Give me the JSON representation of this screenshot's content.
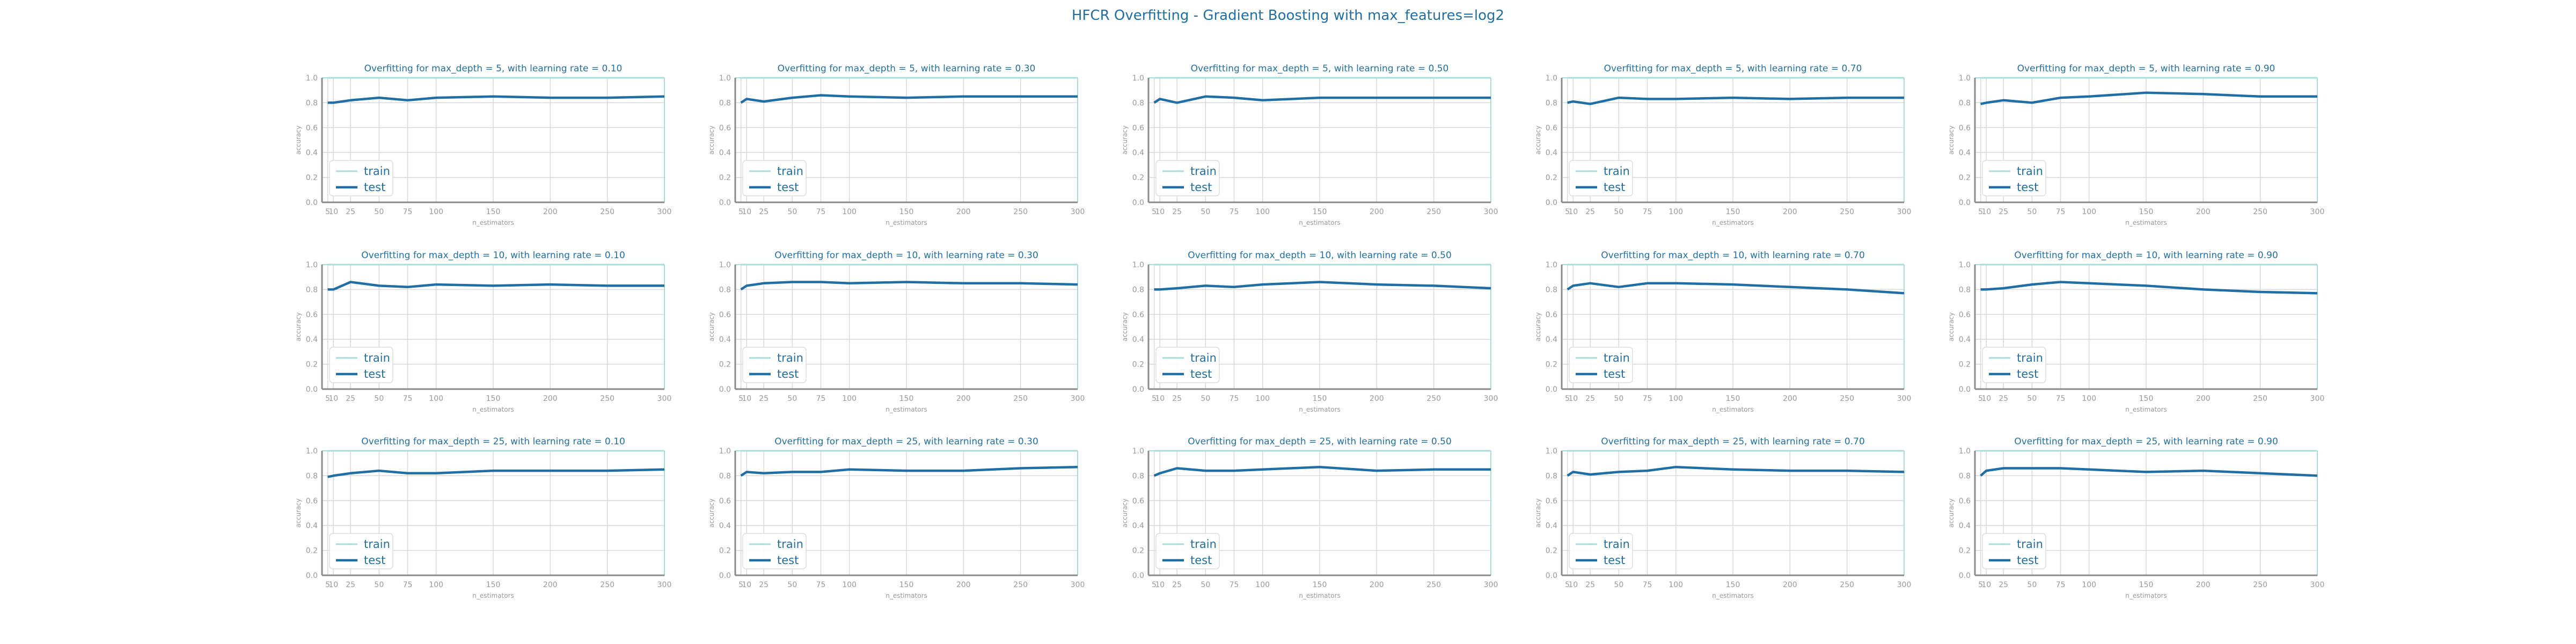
{
  "suptitle": "HFCR Overfitting - Gradient Boosting with max_features=log2",
  "colors": {
    "train": "#a8ddd9",
    "test": "#1f6fa5",
    "title": "#1f6fa5",
    "axis_text": "#999999",
    "grid": "#d8d8d8"
  },
  "chart_data": [
    {
      "type": "line",
      "title": "Overfitting for max_depth = 5, with learning rate = 0.10",
      "xlabel": "n_estimators",
      "ylabel": "accuracy",
      "x": [
        5,
        10,
        25,
        50,
        75,
        100,
        150,
        200,
        250,
        300
      ],
      "xticks": [
        "5",
        "10",
        "25",
        "50",
        "75",
        "100",
        "150",
        "200",
        "250",
        "300"
      ],
      "ylim": [
        0,
        1
      ],
      "yticks": [
        "0.0",
        "0.2",
        "0.4",
        "0.6",
        "0.8",
        "1.0"
      ],
      "legend": "lower-left",
      "grid": true,
      "series": [
        {
          "name": "train",
          "values": [
            1,
            1,
            1,
            1,
            1,
            1,
            1,
            1,
            1,
            1
          ]
        },
        {
          "name": "test",
          "values": [
            0.8,
            0.8,
            0.82,
            0.84,
            0.82,
            0.84,
            0.85,
            0.84,
            0.84,
            0.85
          ]
        }
      ]
    },
    {
      "type": "line",
      "title": "Overfitting for max_depth = 5, with learning rate = 0.30",
      "xlabel": "n_estimators",
      "ylabel": "accuracy",
      "x": [
        5,
        10,
        25,
        50,
        75,
        100,
        150,
        200,
        250,
        300
      ],
      "xticks": [
        "5",
        "10",
        "25",
        "50",
        "75",
        "100",
        "150",
        "200",
        "250",
        "300"
      ],
      "ylim": [
        0,
        1
      ],
      "yticks": [
        "0.0",
        "0.2",
        "0.4",
        "0.6",
        "0.8",
        "1.0"
      ],
      "legend": "lower-left",
      "grid": true,
      "series": [
        {
          "name": "train",
          "values": [
            1,
            1,
            1,
            1,
            1,
            1,
            1,
            1,
            1,
            1
          ]
        },
        {
          "name": "test",
          "values": [
            0.8,
            0.83,
            0.81,
            0.84,
            0.86,
            0.85,
            0.84,
            0.85,
            0.85,
            0.85
          ]
        }
      ]
    },
    {
      "type": "line",
      "title": "Overfitting for max_depth = 5, with learning rate = 0.50",
      "xlabel": "n_estimators",
      "ylabel": "accuracy",
      "x": [
        5,
        10,
        25,
        50,
        75,
        100,
        150,
        200,
        250,
        300
      ],
      "xticks": [
        "5",
        "10",
        "25",
        "50",
        "75",
        "100",
        "150",
        "200",
        "250",
        "300"
      ],
      "ylim": [
        0,
        1
      ],
      "yticks": [
        "0.0",
        "0.2",
        "0.4",
        "0.6",
        "0.8",
        "1.0"
      ],
      "legend": "lower-left",
      "grid": true,
      "series": [
        {
          "name": "train",
          "values": [
            1,
            1,
            1,
            1,
            1,
            1,
            1,
            1,
            1,
            1
          ]
        },
        {
          "name": "test",
          "values": [
            0.8,
            0.83,
            0.8,
            0.85,
            0.84,
            0.82,
            0.84,
            0.84,
            0.84,
            0.84
          ]
        }
      ]
    },
    {
      "type": "line",
      "title": "Overfitting for max_depth = 5, with learning rate = 0.70",
      "xlabel": "n_estimators",
      "ylabel": "accuracy",
      "x": [
        5,
        10,
        25,
        50,
        75,
        100,
        150,
        200,
        250,
        300
      ],
      "xticks": [
        "5",
        "10",
        "25",
        "50",
        "75",
        "100",
        "150",
        "200",
        "250",
        "300"
      ],
      "ylim": [
        0,
        1
      ],
      "yticks": [
        "0.0",
        "0.2",
        "0.4",
        "0.6",
        "0.8",
        "1.0"
      ],
      "legend": "lower-left",
      "grid": true,
      "series": [
        {
          "name": "train",
          "values": [
            1,
            1,
            1,
            1,
            1,
            1,
            1,
            1,
            1,
            1
          ]
        },
        {
          "name": "test",
          "values": [
            0.8,
            0.81,
            0.79,
            0.84,
            0.83,
            0.83,
            0.84,
            0.83,
            0.84,
            0.84
          ]
        }
      ]
    },
    {
      "type": "line",
      "title": "Overfitting for max_depth = 5, with learning rate = 0.90",
      "xlabel": "n_estimators",
      "ylabel": "accuracy",
      "x": [
        5,
        10,
        25,
        50,
        75,
        100,
        150,
        200,
        250,
        300
      ],
      "xticks": [
        "5",
        "10",
        "25",
        "50",
        "75",
        "100",
        "150",
        "200",
        "250",
        "300"
      ],
      "ylim": [
        0,
        1
      ],
      "yticks": [
        "0.0",
        "0.2",
        "0.4",
        "0.6",
        "0.8",
        "1.0"
      ],
      "legend": "lower-left",
      "grid": true,
      "series": [
        {
          "name": "train",
          "values": [
            1,
            1,
            1,
            1,
            1,
            1,
            1,
            1,
            1,
            1
          ]
        },
        {
          "name": "test",
          "values": [
            0.79,
            0.8,
            0.82,
            0.8,
            0.84,
            0.85,
            0.88,
            0.87,
            0.85,
            0.85
          ]
        }
      ]
    },
    {
      "type": "line",
      "title": "Overfitting for max_depth = 10, with learning rate = 0.10",
      "xlabel": "n_estimators",
      "ylabel": "accuracy",
      "x": [
        5,
        10,
        25,
        50,
        75,
        100,
        150,
        200,
        250,
        300
      ],
      "xticks": [
        "5",
        "10",
        "25",
        "50",
        "75",
        "100",
        "150",
        "200",
        "250",
        "300"
      ],
      "ylim": [
        0,
        1
      ],
      "yticks": [
        "0.0",
        "0.2",
        "0.4",
        "0.6",
        "0.8",
        "1.0"
      ],
      "legend": "lower-left",
      "grid": true,
      "series": [
        {
          "name": "train",
          "values": [
            1,
            1,
            1,
            1,
            1,
            1,
            1,
            1,
            1,
            1
          ]
        },
        {
          "name": "test",
          "values": [
            0.8,
            0.8,
            0.86,
            0.83,
            0.82,
            0.84,
            0.83,
            0.84,
            0.83,
            0.83
          ]
        }
      ]
    },
    {
      "type": "line",
      "title": "Overfitting for max_depth = 10, with learning rate = 0.30",
      "xlabel": "n_estimators",
      "ylabel": "accuracy",
      "x": [
        5,
        10,
        25,
        50,
        75,
        100,
        150,
        200,
        250,
        300
      ],
      "xticks": [
        "5",
        "10",
        "25",
        "50",
        "75",
        "100",
        "150",
        "200",
        "250",
        "300"
      ],
      "ylim": [
        0,
        1
      ],
      "yticks": [
        "0.0",
        "0.2",
        "0.4",
        "0.6",
        "0.8",
        "1.0"
      ],
      "legend": "lower-left",
      "grid": true,
      "series": [
        {
          "name": "train",
          "values": [
            1,
            1,
            1,
            1,
            1,
            1,
            1,
            1,
            1,
            1
          ]
        },
        {
          "name": "test",
          "values": [
            0.8,
            0.83,
            0.85,
            0.86,
            0.86,
            0.85,
            0.86,
            0.85,
            0.85,
            0.84
          ]
        }
      ]
    },
    {
      "type": "line",
      "title": "Overfitting for max_depth = 10, with learning rate = 0.50",
      "xlabel": "n_estimators",
      "ylabel": "accuracy",
      "x": [
        5,
        10,
        25,
        50,
        75,
        100,
        150,
        200,
        250,
        300
      ],
      "xticks": [
        "5",
        "10",
        "25",
        "50",
        "75",
        "100",
        "150",
        "200",
        "250",
        "300"
      ],
      "ylim": [
        0,
        1
      ],
      "yticks": [
        "0.0",
        "0.2",
        "0.4",
        "0.6",
        "0.8",
        "1.0"
      ],
      "legend": "lower-left",
      "grid": true,
      "series": [
        {
          "name": "train",
          "values": [
            1,
            1,
            1,
            1,
            1,
            1,
            1,
            1,
            1,
            1
          ]
        },
        {
          "name": "test",
          "values": [
            0.8,
            0.8,
            0.81,
            0.83,
            0.82,
            0.84,
            0.86,
            0.84,
            0.83,
            0.81
          ]
        }
      ]
    },
    {
      "type": "line",
      "title": "Overfitting for max_depth = 10, with learning rate = 0.70",
      "xlabel": "n_estimators",
      "ylabel": "accuracy",
      "x": [
        5,
        10,
        25,
        50,
        75,
        100,
        150,
        200,
        250,
        300
      ],
      "xticks": [
        "5",
        "10",
        "25",
        "50",
        "75",
        "100",
        "150",
        "200",
        "250",
        "300"
      ],
      "ylim": [
        0,
        1
      ],
      "yticks": [
        "0.0",
        "0.2",
        "0.4",
        "0.6",
        "0.8",
        "1.0"
      ],
      "legend": "lower-left",
      "grid": true,
      "series": [
        {
          "name": "train",
          "values": [
            1,
            1,
            1,
            1,
            1,
            1,
            1,
            1,
            1,
            1
          ]
        },
        {
          "name": "test",
          "values": [
            0.8,
            0.83,
            0.85,
            0.82,
            0.85,
            0.85,
            0.84,
            0.82,
            0.8,
            0.77
          ]
        }
      ]
    },
    {
      "type": "line",
      "title": "Overfitting for max_depth = 10, with learning rate = 0.90",
      "xlabel": "n_estimators",
      "ylabel": "accuracy",
      "x": [
        5,
        10,
        25,
        50,
        75,
        100,
        150,
        200,
        250,
        300
      ],
      "xticks": [
        "5",
        "10",
        "25",
        "50",
        "75",
        "100",
        "150",
        "200",
        "250",
        "300"
      ],
      "ylim": [
        0,
        1
      ],
      "yticks": [
        "0.0",
        "0.2",
        "0.4",
        "0.6",
        "0.8",
        "1.0"
      ],
      "legend": "lower-left",
      "grid": true,
      "series": [
        {
          "name": "train",
          "values": [
            1,
            1,
            1,
            1,
            1,
            1,
            1,
            1,
            1,
            1
          ]
        },
        {
          "name": "test",
          "values": [
            0.8,
            0.8,
            0.81,
            0.84,
            0.86,
            0.85,
            0.83,
            0.8,
            0.78,
            0.77
          ]
        }
      ]
    },
    {
      "type": "line",
      "title": "Overfitting for max_depth = 25, with learning rate = 0.10",
      "xlabel": "n_estimators",
      "ylabel": "accuracy",
      "x": [
        5,
        10,
        25,
        50,
        75,
        100,
        150,
        200,
        250,
        300
      ],
      "xticks": [
        "5",
        "10",
        "25",
        "50",
        "75",
        "100",
        "150",
        "200",
        "250",
        "300"
      ],
      "ylim": [
        0,
        1
      ],
      "yticks": [
        "0.0",
        "0.2",
        "0.4",
        "0.6",
        "0.8",
        "1.0"
      ],
      "legend": "lower-left",
      "grid": true,
      "series": [
        {
          "name": "train",
          "values": [
            1,
            1,
            1,
            1,
            1,
            1,
            1,
            1,
            1,
            1
          ]
        },
        {
          "name": "test",
          "values": [
            0.79,
            0.8,
            0.82,
            0.84,
            0.82,
            0.82,
            0.84,
            0.84,
            0.84,
            0.85
          ]
        }
      ]
    },
    {
      "type": "line",
      "title": "Overfitting for max_depth = 25, with learning rate = 0.30",
      "xlabel": "n_estimators",
      "ylabel": "accuracy",
      "x": [
        5,
        10,
        25,
        50,
        75,
        100,
        150,
        200,
        250,
        300
      ],
      "xticks": [
        "5",
        "10",
        "25",
        "50",
        "75",
        "100",
        "150",
        "200",
        "250",
        "300"
      ],
      "ylim": [
        0,
        1
      ],
      "yticks": [
        "0.0",
        "0.2",
        "0.4",
        "0.6",
        "0.8",
        "1.0"
      ],
      "legend": "lower-left",
      "grid": true,
      "series": [
        {
          "name": "train",
          "values": [
            1,
            1,
            1,
            1,
            1,
            1,
            1,
            1,
            1,
            1
          ]
        },
        {
          "name": "test",
          "values": [
            0.8,
            0.83,
            0.82,
            0.83,
            0.83,
            0.85,
            0.84,
            0.84,
            0.86,
            0.87
          ]
        }
      ]
    },
    {
      "type": "line",
      "title": "Overfitting for max_depth = 25, with learning rate = 0.50",
      "xlabel": "n_estimators",
      "ylabel": "accuracy",
      "x": [
        5,
        10,
        25,
        50,
        75,
        100,
        150,
        200,
        250,
        300
      ],
      "xticks": [
        "5",
        "10",
        "25",
        "50",
        "75",
        "100",
        "150",
        "200",
        "250",
        "300"
      ],
      "ylim": [
        0,
        1
      ],
      "yticks": [
        "0.0",
        "0.2",
        "0.4",
        "0.6",
        "0.8",
        "1.0"
      ],
      "legend": "lower-left",
      "grid": true,
      "series": [
        {
          "name": "train",
          "values": [
            1,
            1,
            1,
            1,
            1,
            1,
            1,
            1,
            1,
            1
          ]
        },
        {
          "name": "test",
          "values": [
            0.8,
            0.82,
            0.86,
            0.84,
            0.84,
            0.85,
            0.87,
            0.84,
            0.85,
            0.85
          ]
        }
      ]
    },
    {
      "type": "line",
      "title": "Overfitting for max_depth = 25, with learning rate = 0.70",
      "xlabel": "n_estimators",
      "ylabel": "accuracy",
      "x": [
        5,
        10,
        25,
        50,
        75,
        100,
        150,
        200,
        250,
        300
      ],
      "xticks": [
        "5",
        "10",
        "25",
        "50",
        "75",
        "100",
        "150",
        "200",
        "250",
        "300"
      ],
      "ylim": [
        0,
        1
      ],
      "yticks": [
        "0.0",
        "0.2",
        "0.4",
        "0.6",
        "0.8",
        "1.0"
      ],
      "legend": "lower-left",
      "grid": true,
      "series": [
        {
          "name": "train",
          "values": [
            1,
            1,
            1,
            1,
            1,
            1,
            1,
            1,
            1,
            1
          ]
        },
        {
          "name": "test",
          "values": [
            0.8,
            0.83,
            0.81,
            0.83,
            0.84,
            0.87,
            0.85,
            0.84,
            0.84,
            0.83
          ]
        }
      ]
    },
    {
      "type": "line",
      "title": "Overfitting for max_depth = 25, with learning rate = 0.90",
      "xlabel": "n_estimators",
      "ylabel": "accuracy",
      "x": [
        5,
        10,
        25,
        50,
        75,
        100,
        150,
        200,
        250,
        300
      ],
      "xticks": [
        "5",
        "10",
        "25",
        "50",
        "75",
        "100",
        "150",
        "200",
        "250",
        "300"
      ],
      "ylim": [
        0,
        1
      ],
      "yticks": [
        "0.0",
        "0.2",
        "0.4",
        "0.6",
        "0.8",
        "1.0"
      ],
      "legend": "lower-left",
      "grid": true,
      "series": [
        {
          "name": "train",
          "values": [
            1,
            1,
            1,
            1,
            1,
            1,
            1,
            1,
            1,
            1
          ]
        },
        {
          "name": "test",
          "values": [
            0.8,
            0.84,
            0.86,
            0.86,
            0.86,
            0.85,
            0.83,
            0.84,
            0.82,
            0.8
          ]
        }
      ]
    }
  ]
}
